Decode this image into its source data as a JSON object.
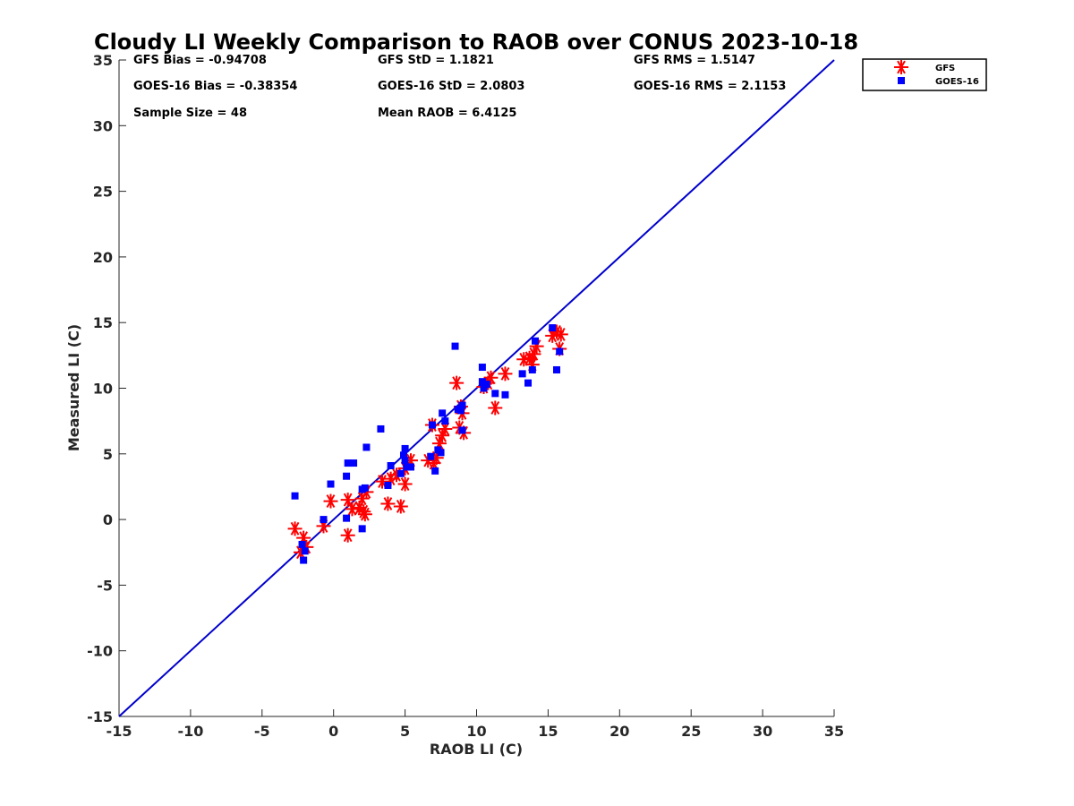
{
  "chart_data": {
    "type": "scatter",
    "title": "Cloudy LI Weekly Comparison to RAOB over CONUS 2023-10-18",
    "xlabel": "RAOB LI (C)",
    "ylabel": "Measured LI (C)",
    "xlim": [
      -15,
      35
    ],
    "ylim": [
      -15,
      35
    ],
    "xticks": [
      "-15",
      "-10",
      "-5",
      "0",
      "5",
      "10",
      "15",
      "20",
      "25",
      "30",
      "35"
    ],
    "yticks": [
      "-15",
      "-10",
      "-5",
      "0",
      "5",
      "10",
      "15",
      "20",
      "25",
      "30",
      "35"
    ],
    "grid": false,
    "legend_position": "outside-top-right",
    "reference_line": {
      "name": "1:1 line",
      "x": [
        -15,
        35
      ],
      "y": [
        -15,
        35
      ],
      "color": "#0000cc"
    },
    "stats": [
      {
        "text": "GFS Bias = -0.94708"
      },
      {
        "text": "GFS StD = 1.1821"
      },
      {
        "text": "GFS RMS = 1.5147"
      },
      {
        "text": "GOES-16 Bias = -0.38354"
      },
      {
        "text": "GOES-16 StD = 2.0803"
      },
      {
        "text": "GOES-16 RMS = 2.1153"
      },
      {
        "text": "Sample Size = 48"
      },
      {
        "text": "Mean RAOB = 6.4125"
      }
    ],
    "series": [
      {
        "name": "GFS",
        "marker": "asterisk",
        "color": "#ff0000",
        "points": [
          [
            -2.7,
            -0.7
          ],
          [
            -2.3,
            -2.5
          ],
          [
            -2.1,
            -1.4
          ],
          [
            -1.9,
            -2.1
          ],
          [
            -0.7,
            -0.5
          ],
          [
            -0.2,
            1.4
          ],
          [
            1.0,
            1.5
          ],
          [
            1.0,
            -1.2
          ],
          [
            1.3,
            0.8
          ],
          [
            1.8,
            0.9
          ],
          [
            2.0,
            1.6
          ],
          [
            2.1,
            0.6
          ],
          [
            2.2,
            0.4
          ],
          [
            2.3,
            2.1
          ],
          [
            3.4,
            2.9
          ],
          [
            3.8,
            1.2
          ],
          [
            4.0,
            3.1
          ],
          [
            4.7,
            1.0
          ],
          [
            5.0,
            3.9
          ],
          [
            5.0,
            2.7
          ],
          [
            5.4,
            4.5
          ],
          [
            6.9,
            7.2
          ],
          [
            7.0,
            4.3
          ],
          [
            7.2,
            4.7
          ],
          [
            7.4,
            5.8
          ],
          [
            7.6,
            6.4
          ],
          [
            7.8,
            6.9
          ],
          [
            8.6,
            10.4
          ],
          [
            8.8,
            7.0
          ],
          [
            9.0,
            8.1
          ],
          [
            9.1,
            6.6
          ],
          [
            10.5,
            10.1
          ],
          [
            10.8,
            10.4
          ],
          [
            11.0,
            10.8
          ],
          [
            11.3,
            8.5
          ],
          [
            12.0,
            11.1
          ],
          [
            13.3,
            12.2
          ],
          [
            13.7,
            12.3
          ],
          [
            13.9,
            11.8
          ],
          [
            14.2,
            13.2
          ],
          [
            15.3,
            14.0
          ],
          [
            15.6,
            14.3
          ],
          [
            15.8,
            13.0
          ],
          [
            15.9,
            14.1
          ],
          [
            8.9,
            8.6
          ],
          [
            4.4,
            3.4
          ],
          [
            6.6,
            4.5
          ],
          [
            14.0,
            12.6
          ]
        ]
      },
      {
        "name": "GOES-16",
        "marker": "square",
        "color": "#0000ff",
        "points": [
          [
            -2.7,
            1.8
          ],
          [
            -2.2,
            -1.9
          ],
          [
            -2.1,
            -3.1
          ],
          [
            -2.0,
            -2.4
          ],
          [
            -0.7,
            0.0
          ],
          [
            -0.2,
            2.7
          ],
          [
            0.9,
            3.3
          ],
          [
            0.9,
            0.1
          ],
          [
            1.0,
            4.3
          ],
          [
            1.4,
            4.3
          ],
          [
            2.0,
            -0.7
          ],
          [
            2.0,
            2.3
          ],
          [
            2.3,
            5.5
          ],
          [
            2.2,
            2.4
          ],
          [
            3.3,
            6.9
          ],
          [
            3.8,
            2.6
          ],
          [
            4.0,
            4.1
          ],
          [
            4.7,
            3.5
          ],
          [
            4.9,
            4.9
          ],
          [
            5.0,
            5.4
          ],
          [
            5.1,
            4.0
          ],
          [
            5.4,
            4.0
          ],
          [
            6.8,
            4.8
          ],
          [
            6.9,
            7.2
          ],
          [
            7.1,
            3.7
          ],
          [
            7.5,
            5.1
          ],
          [
            7.6,
            8.1
          ],
          [
            7.8,
            7.5
          ],
          [
            8.5,
            13.2
          ],
          [
            8.7,
            8.4
          ],
          [
            8.9,
            8.3
          ],
          [
            9.0,
            6.8
          ],
          [
            10.4,
            11.6
          ],
          [
            10.5,
            10.0
          ],
          [
            10.7,
            10.3
          ],
          [
            11.3,
            9.6
          ],
          [
            12.0,
            9.5
          ],
          [
            13.2,
            11.1
          ],
          [
            13.6,
            10.4
          ],
          [
            13.9,
            11.4
          ],
          [
            14.1,
            13.6
          ],
          [
            15.3,
            14.6
          ],
          [
            15.6,
            11.4
          ],
          [
            15.8,
            12.8
          ],
          [
            5.0,
            4.5
          ],
          [
            7.3,
            5.3
          ],
          [
            10.4,
            10.5
          ],
          [
            9.0,
            8.7
          ]
        ]
      }
    ]
  }
}
